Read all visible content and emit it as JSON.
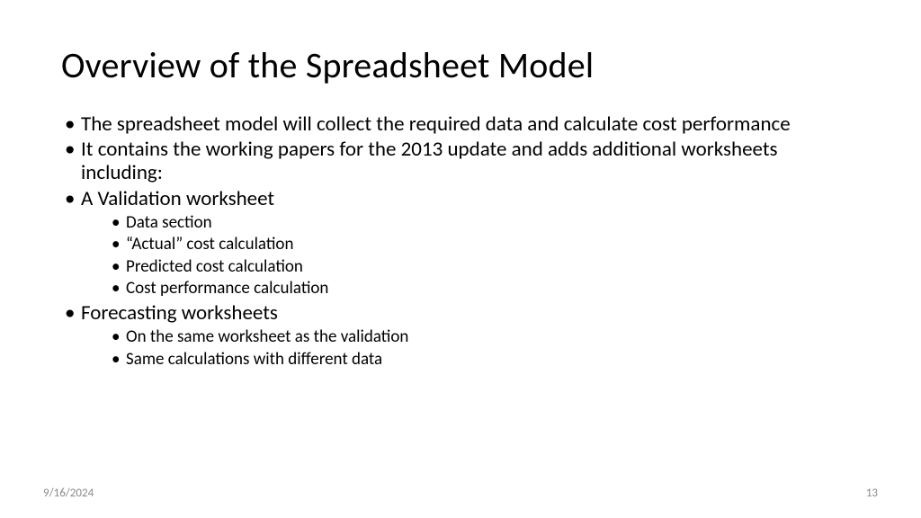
{
  "title": "Overview of the Spreadsheet Model",
  "bullets": [
    {
      "text": "The spreadsheet model will collect the required data and calculate cost performance"
    },
    {
      "text": "It contains the working papers for the 2013 update and adds additional worksheets including:"
    },
    {
      "text": "A Validation worksheet",
      "children": [
        "Data section",
        "“Actual” cost calculation",
        "Predicted cost calculation",
        "Cost performance calculation"
      ]
    },
    {
      "text": "Forecasting worksheets",
      "children": [
        "On the same worksheet as the validation",
        "Same calculations with different data"
      ]
    }
  ],
  "footer": {
    "date": "9/16/2024",
    "page": "13"
  },
  "style": {
    "background_color": "#ffffff",
    "text_color": "#000000",
    "footer_color": "#8a8a8a",
    "title_fontsize": 40,
    "body_fontsize": 23,
    "sub_fontsize": 19,
    "font_family": "Calibri"
  }
}
